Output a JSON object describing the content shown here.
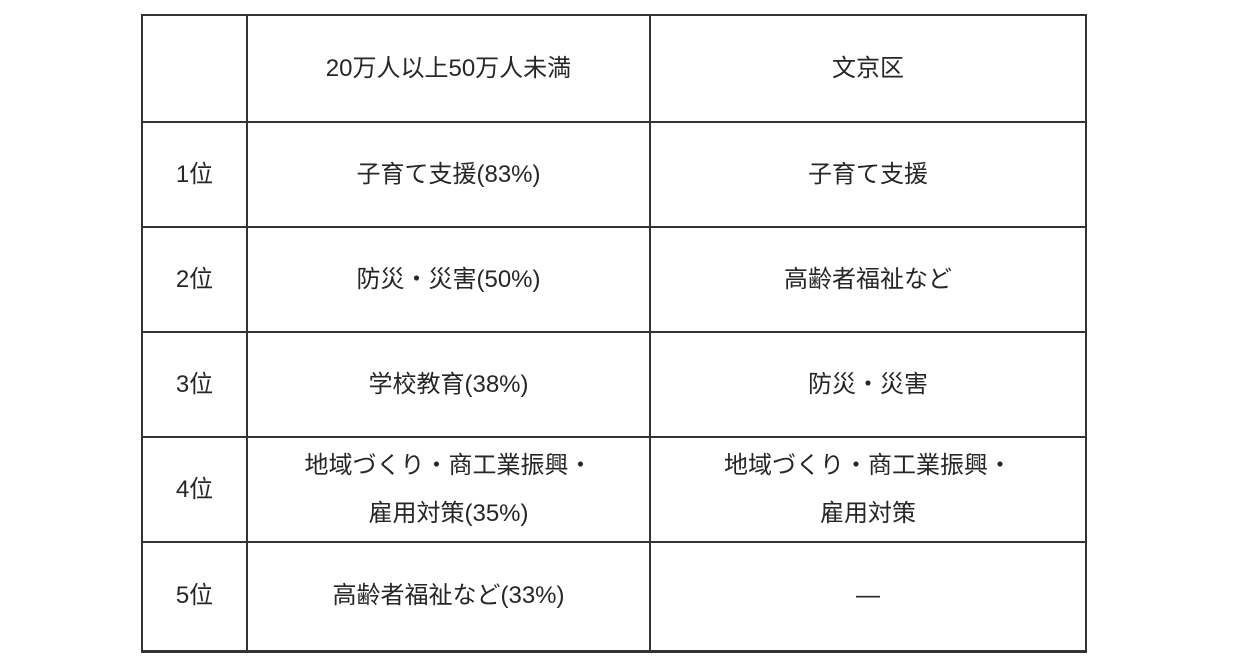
{
  "page": {
    "background_color": "#ffffff"
  },
  "table": {
    "border_color": "#333333",
    "text_color": "#262626",
    "column_headers": [
      "",
      "20万人以上50万人未満",
      "文京区"
    ],
    "rows": [
      {
        "rank": "1位",
        "population_200k_500k": "子育て支援(83%)",
        "bunkyo": "子育て支援"
      },
      {
        "rank": "2位",
        "population_200k_500k": "防災・災害(50%)",
        "bunkyo": "高齢者福祉など"
      },
      {
        "rank": "3位",
        "population_200k_500k": "学校教育(38%)",
        "bunkyo": "防災・災害"
      },
      {
        "rank": "4位",
        "population_200k_500k": "地域づくり・商工業振興・\n雇用対策(35%)",
        "bunkyo": "地域づくり・商工業振興・\n雇用対策"
      },
      {
        "rank": "5位",
        "population_200k_500k": "高齢者福祉など(33%)",
        "bunkyo": "―"
      }
    ]
  }
}
